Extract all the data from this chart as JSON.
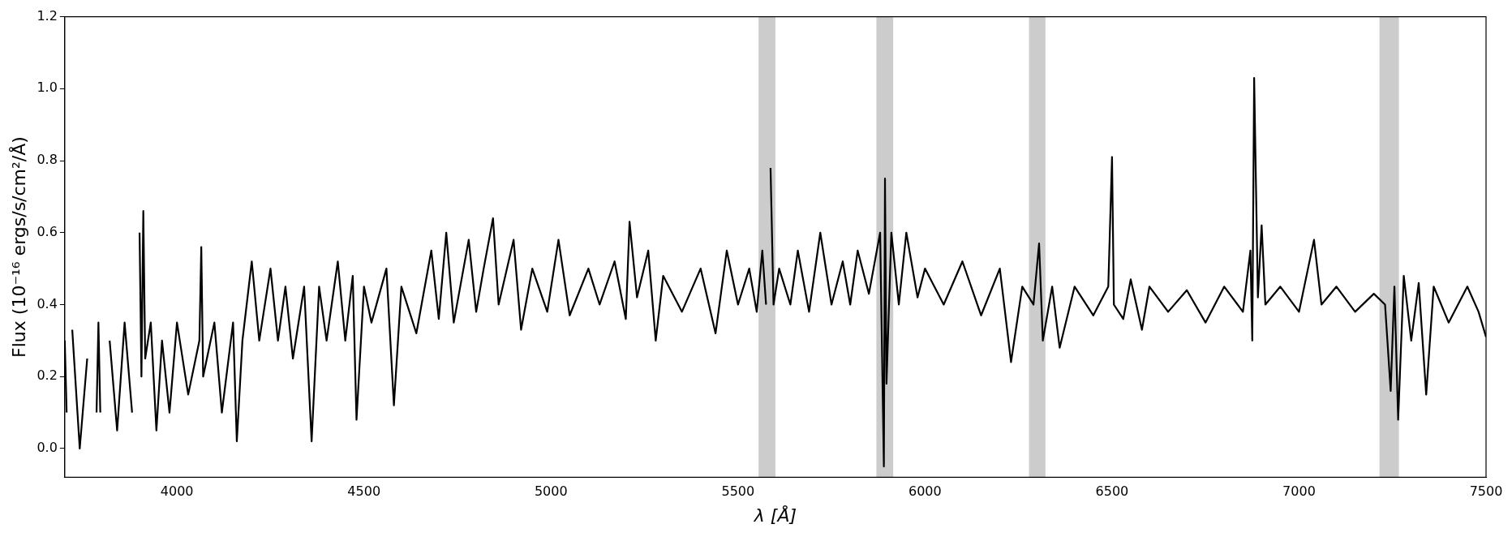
{
  "chart_data": {
    "type": "line",
    "xlabel": "λ [Å]",
    "ylabel": "Flux (10⁻¹⁶ ergs/s/cm²/Å)",
    "xlim": [
      3700,
      7500
    ],
    "ylim": [
      -0.08,
      1.2
    ],
    "xticks": [
      4000,
      4500,
      5000,
      5500,
      6000,
      6500,
      7000,
      7500
    ],
    "yticks": [
      {
        "value": 0,
        "label": "0.0"
      },
      {
        "value": 0.2,
        "label": "0.2"
      },
      {
        "value": 0.4,
        "label": "0.4"
      },
      {
        "value": 0.6,
        "label": "0.6"
      },
      {
        "value": 0.8,
        "label": "0.8"
      },
      {
        "value": 1,
        "label": "1.0"
      },
      {
        "value": 1.2,
        "label": "1.2"
      }
    ],
    "grid": false,
    "marker": "none",
    "line_style": "solid",
    "bands": [
      {
        "axis": "x",
        "from": 5555,
        "to": 5600,
        "color": "#cccccc"
      },
      {
        "axis": "x",
        "from": 5870,
        "to": 5915,
        "color": "#cccccc"
      },
      {
        "axis": "x",
        "from": 6278,
        "to": 6322,
        "color": "#cccccc"
      },
      {
        "axis": "x",
        "from": 7215,
        "to": 7267,
        "color": "#cccccc"
      }
    ],
    "series": [
      {
        "color": "#000000",
        "x": [
          3700,
          3705,
          3710,
          3720,
          3740,
          3760,
          3775,
          3785,
          3790,
          3795,
          3800,
          3820,
          3840,
          3860,
          3880,
          3890,
          3900,
          3905,
          3910,
          3915,
          3930,
          3945,
          3960,
          3980,
          4000,
          4030,
          4060,
          4065,
          4070,
          4100,
          4120,
          4150,
          4160,
          4175,
          4200,
          4220,
          4250,
          4270,
          4290,
          4310,
          4340,
          4360,
          4380,
          4400,
          4430,
          4450,
          4470,
          4480,
          4500,
          4520,
          4560,
          4580,
          4600,
          4640,
          4680,
          4700,
          4720,
          4740,
          4780,
          4800,
          4820,
          4845,
          4860,
          4900,
          4920,
          4950,
          4990,
          5020,
          5050,
          5100,
          5130,
          5170,
          5200,
          5210,
          5230,
          5260,
          5280,
          5300,
          5350,
          5400,
          5440,
          5470,
          5500,
          5530,
          5550,
          5565,
          5575,
          5580,
          5583,
          5587,
          5595,
          5610,
          5640,
          5660,
          5690,
          5720,
          5750,
          5780,
          5800,
          5820,
          5850,
          5880,
          5890,
          5893,
          5897,
          5910,
          5930,
          5950,
          5980,
          6000,
          6050,
          6100,
          6150,
          6200,
          6230,
          6260,
          6290,
          6305,
          6315,
          6340,
          6360,
          6400,
          6450,
          6490,
          6500,
          6505,
          6530,
          6550,
          6580,
          6600,
          6650,
          6700,
          6750,
          6800,
          6850,
          6870,
          6875,
          6880,
          6890,
          6900,
          6910,
          6950,
          7000,
          7040,
          7060,
          7100,
          7150,
          7200,
          7230,
          7245,
          7255,
          7265,
          7280,
          7300,
          7320,
          7340,
          7360,
          7400,
          7450,
          7480,
          7500
        ],
        "values": [
          0.3,
          0.1,
          null,
          0.33,
          0.0,
          0.25,
          null,
          0.1,
          0.35,
          0.1,
          null,
          0.3,
          0.05,
          0.35,
          0.1,
          null,
          0.6,
          0.2,
          0.66,
          0.25,
          0.35,
          0.05,
          0.3,
          0.1,
          0.35,
          0.15,
          0.3,
          0.56,
          0.2,
          0.35,
          0.1,
          0.35,
          0.02,
          0.3,
          0.52,
          0.3,
          0.5,
          0.3,
          0.45,
          0.25,
          0.45,
          0.02,
          0.45,
          0.3,
          0.52,
          0.3,
          0.48,
          0.08,
          0.45,
          0.35,
          0.5,
          0.12,
          0.45,
          0.32,
          0.55,
          0.36,
          0.6,
          0.35,
          0.58,
          0.38,
          0.5,
          0.64,
          0.4,
          0.58,
          0.33,
          0.5,
          0.38,
          0.58,
          0.37,
          0.5,
          0.4,
          0.52,
          0.36,
          0.63,
          0.42,
          0.55,
          0.3,
          0.48,
          0.38,
          0.5,
          0.32,
          0.55,
          0.4,
          0.5,
          0.38,
          0.55,
          0.4,
          null,
          null,
          0.78,
          0.4,
          0.5,
          0.4,
          0.55,
          0.38,
          0.6,
          0.4,
          0.52,
          0.4,
          0.55,
          0.43,
          0.6,
          -0.05,
          0.75,
          0.18,
          0.6,
          0.4,
          0.6,
          0.42,
          0.5,
          0.4,
          0.52,
          0.37,
          0.5,
          0.24,
          0.45,
          0.4,
          0.57,
          0.3,
          0.45,
          0.28,
          0.45,
          0.37,
          0.45,
          0.81,
          0.4,
          0.36,
          0.47,
          0.33,
          0.45,
          0.38,
          0.44,
          0.35,
          0.45,
          0.38,
          0.55,
          0.3,
          1.03,
          0.42,
          0.62,
          0.4,
          0.45,
          0.38,
          0.58,
          0.4,
          0.45,
          0.38,
          0.43,
          0.4,
          0.16,
          0.45,
          0.08,
          0.48,
          0.3,
          0.46,
          0.15,
          0.45,
          0.35,
          0.45,
          0.38,
          0.31
        ]
      }
    ]
  }
}
